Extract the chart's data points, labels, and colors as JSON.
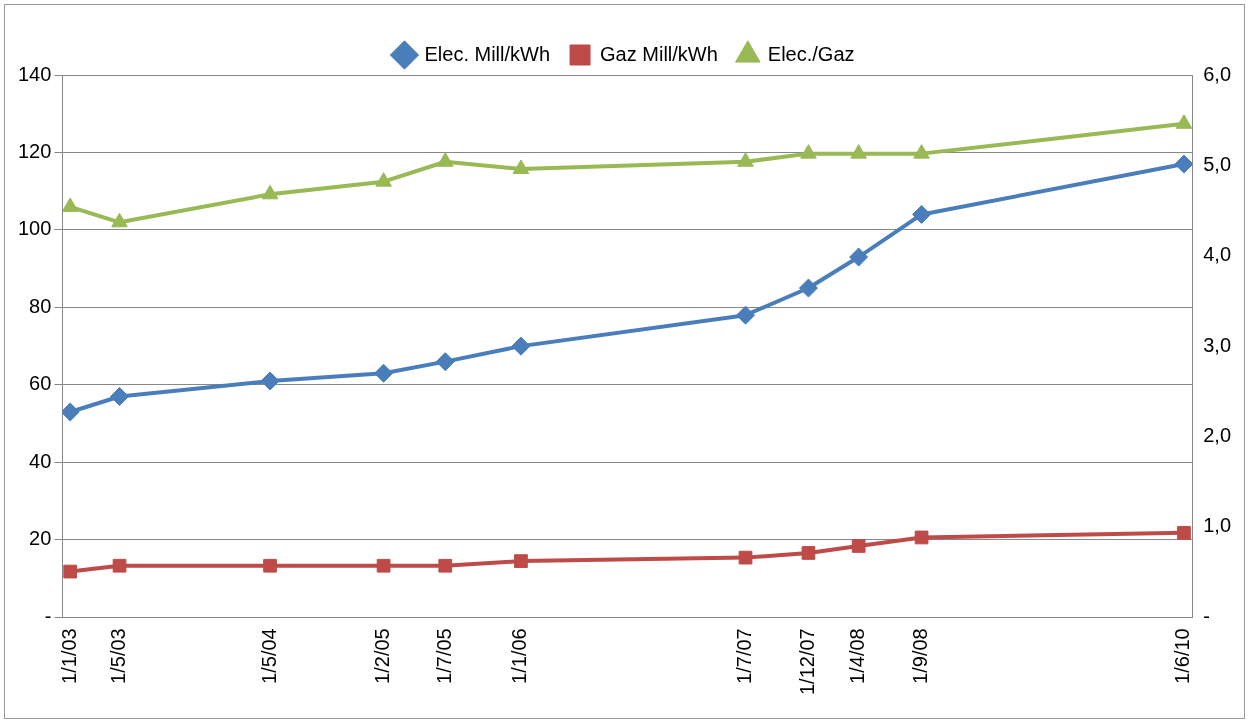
{
  "chart_data": {
    "type": "line",
    "x": [
      "2003-01-01",
      "2003-05-01",
      "2004-05-01",
      "2005-02-01",
      "2005-07-01",
      "2006-01-01",
      "2007-07-01",
      "2007-12-01",
      "2008-04-01",
      "2008-09-01",
      "2010-06-01"
    ],
    "xlim": [
      "2002-12-13",
      "2010-06-21"
    ],
    "xticks": [
      {
        "value": "2003-01-01",
        "label": "1/1/03"
      },
      {
        "value": "2003-05-01",
        "label": "1/5/03"
      },
      {
        "value": "2004-05-01",
        "label": "1/5/04"
      },
      {
        "value": "2005-02-01",
        "label": "1/2/05"
      },
      {
        "value": "2005-07-01",
        "label": "1/7/05"
      },
      {
        "value": "2006-01-01",
        "label": "1/1/06"
      },
      {
        "value": "2007-07-01",
        "label": "1/7/07"
      },
      {
        "value": "2007-12-01",
        "label": "1/12/07"
      },
      {
        "value": "2008-04-01",
        "label": "1/4/08"
      },
      {
        "value": "2008-09-01",
        "label": "1/9/08"
      },
      {
        "value": "2010-06-01",
        "label": "1/6/10"
      }
    ],
    "ylim": [
      0,
      140
    ],
    "yticks": [
      {
        "value": 0,
        "label": "-"
      },
      20,
      40,
      60,
      80,
      100,
      120,
      140
    ],
    "y2lim": [
      0,
      6
    ],
    "y2ticks": [
      {
        "value": 0,
        "label": "-"
      },
      {
        "value": 1,
        "label": "1,0"
      },
      {
        "value": 2,
        "label": "2,0"
      },
      {
        "value": 3,
        "label": "3,0"
      },
      {
        "value": 4,
        "label": "4,0"
      },
      {
        "value": 5,
        "label": "5,0"
      },
      {
        "value": 6,
        "label": "6,0"
      }
    ],
    "series": [
      {
        "name": "Elec. Mill/kWh",
        "color": "#4a7ebb",
        "marker": "diamond",
        "values": [
          53,
          57,
          61,
          63,
          66,
          70,
          78,
          85,
          93,
          104,
          117
        ]
      },
      {
        "name": "Gaz Mill/kWh",
        "color": "#be4b48",
        "marker": "square",
        "values": [
          11.8,
          13.3,
          13.3,
          13.3,
          13.3,
          14.5,
          15.4,
          16.6,
          18.4,
          20.6,
          21.8
        ]
      },
      {
        "name": "Elec./Gaz",
        "color": "#98b954",
        "marker": "triangle",
        "axis": "y2",
        "values": [
          4.54,
          4.37,
          4.68,
          4.82,
          5.04,
          4.96,
          5.04,
          5.13,
          5.13,
          5.13,
          5.46
        ]
      }
    ],
    "grid": "y",
    "legend": "top",
    "line_style": "solid"
  }
}
